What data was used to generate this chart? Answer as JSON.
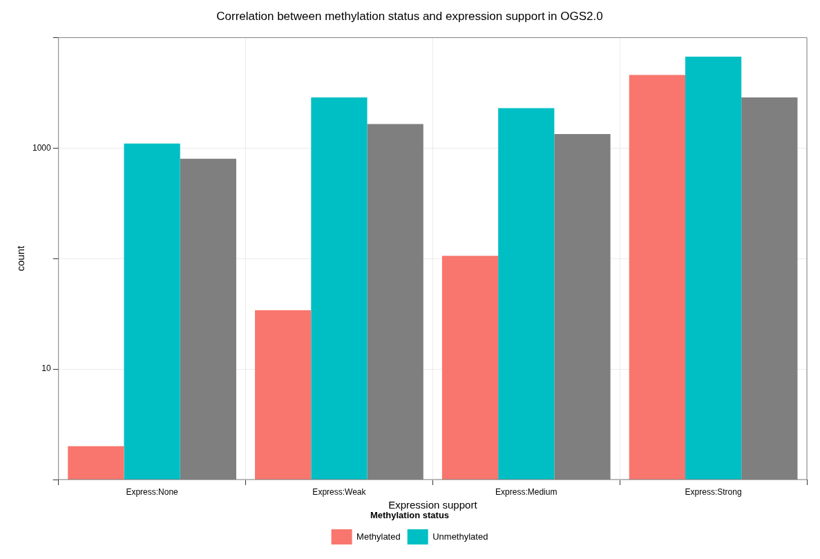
{
  "chart_data": {
    "type": "bar",
    "title": "Correlation between methylation status and expression support in OGS2.0",
    "xlabel": "Expression support",
    "ylabel": "count",
    "legend_title": "Methylation status",
    "categories": [
      "Express:None",
      "Express:Weak",
      "Express:Medium",
      "Express:Strong"
    ],
    "series": [
      {
        "name": "Methylated",
        "color": "#f8766d",
        "values": [
          2,
          34,
          106,
          4590
        ]
      },
      {
        "name": "Unmethylated",
        "color": "#00bfc4",
        "values": [
          1100,
          2870,
          2300,
          6730
        ]
      },
      {
        "color": "#7f7f7f",
        "values": [
          800,
          1650,
          1340,
          2870
        ]
      }
    ],
    "log": "y",
    "ylim": [
      1,
      10000
    ],
    "yticks": [
      {
        "value": 1,
        "label": null
      },
      10,
      {
        "value": 100,
        "label": null
      },
      1000,
      {
        "value": 10000,
        "label": null
      }
    ],
    "grid": true,
    "legend": "bottom"
  }
}
